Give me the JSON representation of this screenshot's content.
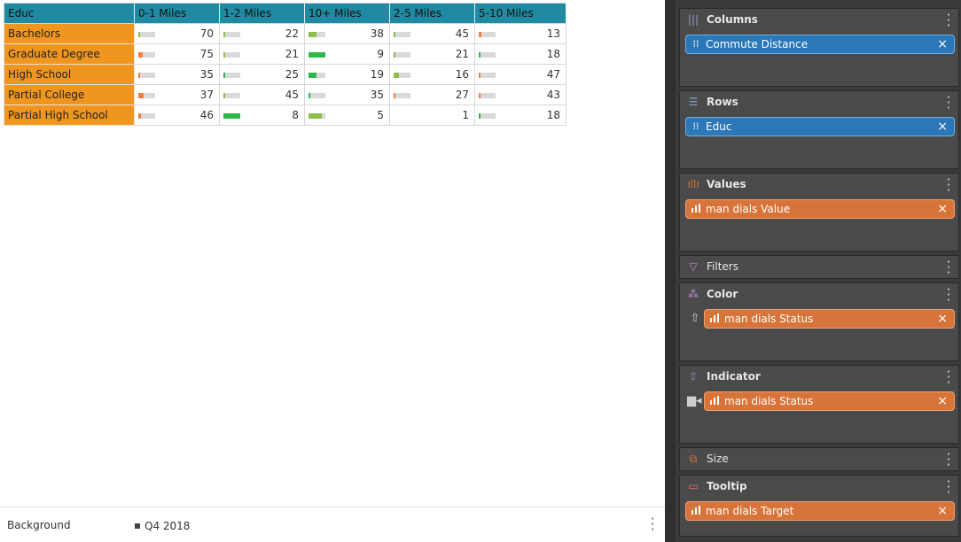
{
  "table": {
    "corner": "Educ",
    "columns": [
      "0-1 Miles",
      "1-2 Miles",
      "10+ Miles",
      "2-5 Miles",
      "5-10 Miles"
    ],
    "rows": [
      {
        "label": "Bachelors",
        "cells": [
          {
            "value": "70",
            "fill": 0.1,
            "color": "#8cbf4a"
          },
          {
            "value": "22",
            "fill": 0.1,
            "color": "#8cbf4a"
          },
          {
            "value": "38",
            "fill": 0.45,
            "color": "#8cbf4a"
          },
          {
            "value": "45",
            "fill": 0.1,
            "color": "#8cbf4a"
          },
          {
            "value": "13",
            "fill": 0.15,
            "color": "#f08040"
          }
        ]
      },
      {
        "label": "Graduate Degree",
        "cells": [
          {
            "value": "75",
            "fill": 0.25,
            "color": "#f08040"
          },
          {
            "value": "21",
            "fill": 0.1,
            "color": "#8cbf4a"
          },
          {
            "value": "9",
            "fill": 1.0,
            "color": "#2eb84a"
          },
          {
            "value": "21",
            "fill": 0.1,
            "color": "#8cbf4a"
          },
          {
            "value": "18",
            "fill": 0.1,
            "color": "#2eb84a"
          }
        ]
      },
      {
        "label": "High School",
        "cells": [
          {
            "value": "35",
            "fill": 0.1,
            "color": "#f08040"
          },
          {
            "value": "25",
            "fill": 0.1,
            "color": "#2eb84a"
          },
          {
            "value": "19",
            "fill": 0.45,
            "color": "#2eb84a"
          },
          {
            "value": "16",
            "fill": 0.3,
            "color": "#8cbf4a"
          },
          {
            "value": "47",
            "fill": 0.1,
            "color": "#f08040"
          }
        ]
      },
      {
        "label": "Partial College",
        "cells": [
          {
            "value": "37",
            "fill": 0.3,
            "color": "#f08040"
          },
          {
            "value": "45",
            "fill": 0.1,
            "color": "#8cbf4a"
          },
          {
            "value": "35",
            "fill": 0.1,
            "color": "#2eb84a"
          },
          {
            "value": "27",
            "fill": 0.1,
            "color": "#f08040"
          },
          {
            "value": "43",
            "fill": 0.1,
            "color": "#f08040"
          }
        ]
      },
      {
        "label": "Partial High School",
        "cells": [
          {
            "value": "46",
            "fill": 0.15,
            "color": "#f08040"
          },
          {
            "value": "8",
            "fill": 1.0,
            "color": "#2eb84a"
          },
          {
            "value": "5",
            "fill": 0.8,
            "color": "#8cbf4a"
          },
          {
            "value": "1",
            "fill": 0.0,
            "color": "#d9d9d9"
          },
          {
            "value": "18",
            "fill": 0.1,
            "color": "#2eb84a"
          }
        ]
      }
    ]
  },
  "footer": {
    "label": "Background",
    "value": "Q4 2018"
  },
  "wells": {
    "columns": {
      "title": "Columns",
      "pill": "Commute Distance"
    },
    "rows": {
      "title": "Rows",
      "pill": "Educ"
    },
    "values": {
      "title": "Values",
      "pill": "man dials Value"
    },
    "filters": {
      "title": "Filters"
    },
    "color": {
      "title": "Color",
      "pill": "man dials Status"
    },
    "indicator": {
      "title": "Indicator",
      "pill": "man dials Status"
    },
    "size": {
      "title": "Size"
    },
    "tooltip": {
      "title": "Tooltip",
      "pill": "man dials Target"
    }
  },
  "colors": {
    "header": "#1f8aa1",
    "rowhead": "#f0961e",
    "pill_blue": "#2b77b8",
    "pill_orange": "#d8743a",
    "panel": "#3a3a3a"
  }
}
